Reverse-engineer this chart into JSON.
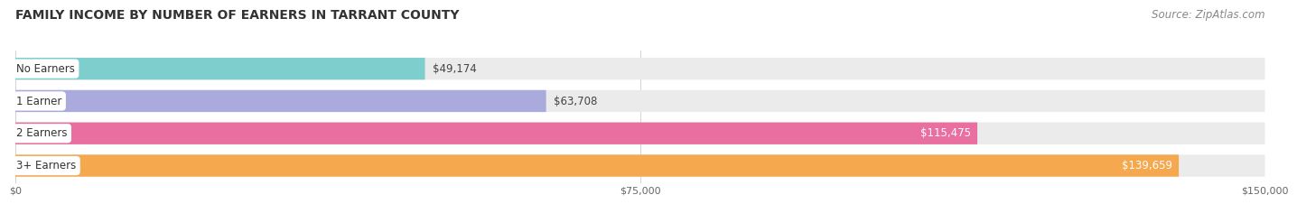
{
  "title": "FAMILY INCOME BY NUMBER OF EARNERS IN TARRANT COUNTY",
  "source": "Source: ZipAtlas.com",
  "categories": [
    "No Earners",
    "1 Earner",
    "2 Earners",
    "3+ Earners"
  ],
  "values": [
    49174,
    63708,
    115475,
    139659
  ],
  "bar_colors": [
    "#7ecece",
    "#aaaadd",
    "#e96fa0",
    "#f5a84e"
  ],
  "label_colors": [
    "#333333",
    "#333333",
    "#ffffff",
    "#ffffff"
  ],
  "value_labels": [
    "$49,174",
    "$63,708",
    "$115,475",
    "$139,659"
  ],
  "x_ticks": [
    0,
    75000,
    150000
  ],
  "x_tick_labels": [
    "$0",
    "$75,000",
    "$150,000"
  ],
  "xlim": [
    0,
    150000
  ],
  "background_color": "#ffffff",
  "bar_bg_color": "#ebebeb",
  "title_fontsize": 10,
  "source_fontsize": 8.5,
  "cat_label_fontsize": 8.5,
  "value_fontsize": 8.5,
  "bar_height": 0.68
}
